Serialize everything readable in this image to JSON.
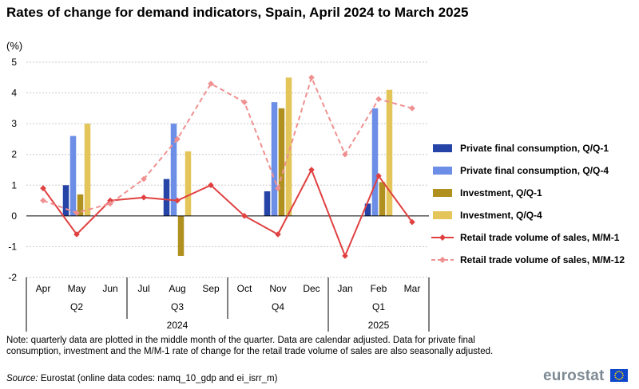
{
  "title": "Rates of change for demand indicators, Spain, April 2024 to March 2025",
  "unit_label": "(%)",
  "note": "Note: quarterly data are plotted in the middle month of the quarter. Data are calendar adjusted. Data for private final consumption, investment and the M/M-1 rate of change for the retail trade volume of sales are also seasonally adjusted.",
  "source_label": "Source:",
  "source_text": " Eurostat (online data codes: namq_10_gdp and ei_isrr_m)",
  "logo_text": "eurostat",
  "chart_data": {
    "type": "bar",
    "title": "Rates of change for demand indicators, Spain, April 2024 to March 2025",
    "ylabel": "(%)",
    "ylim": [
      -2,
      5
    ],
    "yticks": [
      -2,
      -1,
      0,
      1,
      2,
      3,
      4,
      5
    ],
    "categories": [
      "Apr",
      "May",
      "Jun",
      "Jul",
      "Aug",
      "Sep",
      "Oct",
      "Nov",
      "Dec",
      "Jan",
      "Feb",
      "Mar"
    ],
    "quarters": [
      {
        "label": "Q2",
        "months": [
          0,
          1,
          2
        ]
      },
      {
        "label": "Q3",
        "months": [
          3,
          4,
          5
        ]
      },
      {
        "label": "Q4",
        "months": [
          6,
          7,
          8
        ]
      },
      {
        "label": "Q1",
        "months": [
          9,
          10,
          11
        ]
      }
    ],
    "years": [
      {
        "label": "2024",
        "months": [
          0,
          8
        ]
      },
      {
        "label": "2025",
        "months": [
          9,
          11
        ]
      }
    ],
    "grid": true,
    "legend_position": "right",
    "series": [
      {
        "name": "Private final consumption, Q/Q-1",
        "kind": "bar",
        "color": "#2644a7",
        "values": [
          null,
          1.0,
          null,
          null,
          1.2,
          null,
          null,
          0.8,
          null,
          null,
          0.4,
          null
        ]
      },
      {
        "name": "Private final consumption, Q/Q-4",
        "kind": "bar",
        "color": "#6d8ee6",
        "values": [
          null,
          2.6,
          null,
          null,
          3.0,
          null,
          null,
          3.7,
          null,
          null,
          3.5,
          null
        ]
      },
      {
        "name": "Investment, Q/Q-1",
        "kind": "bar",
        "color": "#b09120",
        "values": [
          null,
          0.7,
          null,
          null,
          -1.3,
          null,
          null,
          3.5,
          null,
          null,
          1.1,
          null
        ]
      },
      {
        "name": "Investment, Q/Q-4",
        "kind": "bar",
        "color": "#e3c55a",
        "values": [
          null,
          3.0,
          null,
          null,
          2.1,
          null,
          null,
          4.5,
          null,
          null,
          4.1,
          null
        ]
      },
      {
        "name": "Retail trade volume of sales, M/M-1",
        "kind": "line",
        "color": "#e04040",
        "dashed": false,
        "values": [
          0.9,
          -0.6,
          0.5,
          0.6,
          0.5,
          1.0,
          0.0,
          -0.6,
          1.5,
          -1.3,
          1.3,
          -0.2
        ]
      },
      {
        "name": "Retail trade volume of sales, M/M-12",
        "kind": "line",
        "color": "#f09090",
        "dashed": true,
        "values": [
          0.5,
          0.1,
          0.4,
          1.2,
          2.5,
          4.3,
          3.7,
          0.9,
          4.5,
          2.0,
          3.8,
          3.5
        ]
      }
    ]
  }
}
